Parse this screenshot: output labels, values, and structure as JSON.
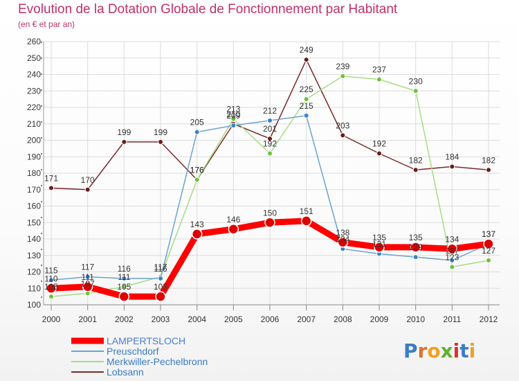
{
  "chart_data": {
    "type": "line",
    "title": "Evolution de la Dotation Globale de Fonctionnement par Habitant",
    "subtitle": "(en € et par an)",
    "xlabel": "",
    "ylabel": "",
    "ylim": [
      100,
      260
    ],
    "yticks": [
      100,
      110,
      120,
      130,
      140,
      150,
      160,
      170,
      180,
      190,
      200,
      210,
      220,
      230,
      240,
      250,
      260
    ],
    "categories": [
      "2000",
      "2001",
      "2002",
      "2003",
      "2004",
      "2005",
      "2006",
      "2007",
      "2008",
      "2009",
      "2010",
      "2011",
      "2012"
    ],
    "grid": true,
    "legend_position": "bottom-left",
    "series": [
      {
        "name": "LAMPERTSLOCH",
        "color": "#ff0000",
        "marker": "#dd0000",
        "values": [
          110,
          111,
          105,
          105,
          143,
          146,
          150,
          151,
          138,
          135,
          135,
          134,
          137
        ]
      },
      {
        "name": "Preuschdorf",
        "color": "#6aa3d0",
        "marker": "#3a82c4",
        "values": [
          115,
          117,
          116,
          116,
          205,
          209,
          212,
          215,
          134,
          131,
          129,
          127,
          137
        ]
      },
      {
        "name": "Merkwiller-Pechelbronn",
        "color": "#a6dc84",
        "marker": "#6cc23a",
        "values": [
          105,
          107,
          111,
          117,
          176,
          213,
          192,
          225,
          239,
          237,
          230,
          123,
          127
        ]
      },
      {
        "name": "Lobsann",
        "color": "#7a2a2a",
        "marker": "#6b1a1a",
        "values": [
          171,
          170,
          199,
          199,
          176,
          210,
          201,
          249,
          203,
          192,
          182,
          184,
          182
        ]
      }
    ]
  },
  "logo": {
    "text": "Proxiti"
  }
}
